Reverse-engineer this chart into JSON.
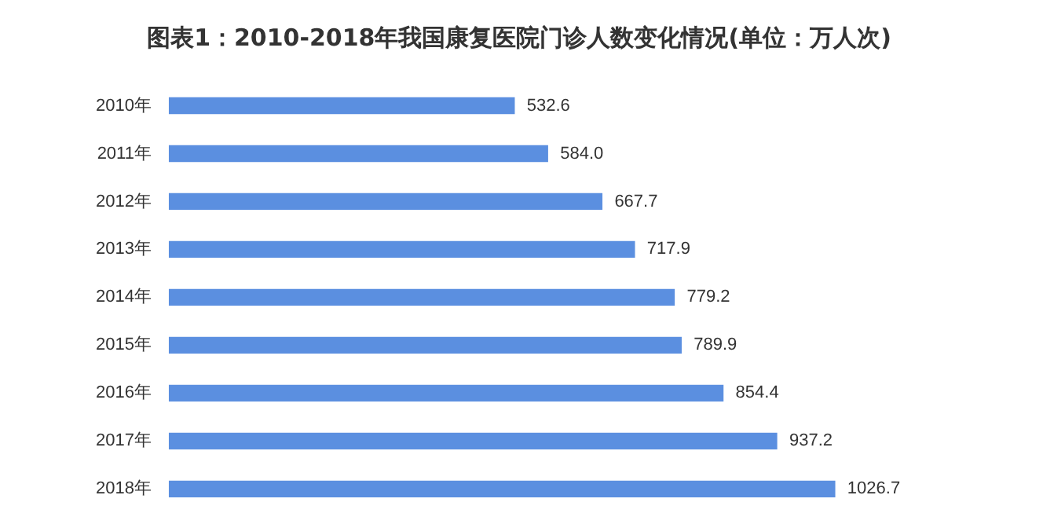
{
  "chart_data": {
    "type": "bar",
    "orientation": "horizontal",
    "title": "图表1：2010-2018年我国康复医院门诊人数变化情况(单位：万人次)",
    "categories": [
      "2010年",
      "2011年",
      "2012年",
      "2013年",
      "2014年",
      "2015年",
      "2016年",
      "2017年",
      "2018年"
    ],
    "values": [
      532.6,
      584.0,
      667.7,
      717.9,
      779.2,
      789.9,
      854.4,
      937.2,
      1026.7
    ],
    "value_labels": [
      "532.6",
      "584.0",
      "667.7",
      "717.9",
      "779.2",
      "789.9",
      "854.4",
      "937.2",
      "1026.7"
    ],
    "color": "#5b8fe0"
  }
}
